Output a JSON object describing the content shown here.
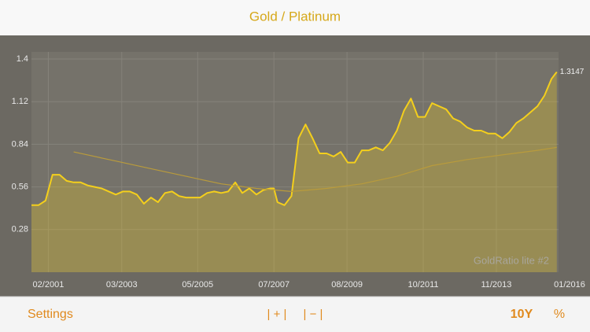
{
  "header": {
    "title": "Gold / Platinum"
  },
  "chart_data": {
    "type": "line",
    "watermark": "GoldRatio lite #2",
    "xlim": [
      2000.6,
      2015.6
    ],
    "xticks": [
      {
        "value": 2001.08,
        "label": "02/2001"
      },
      {
        "value": 2003.17,
        "label": "03/2003"
      },
      {
        "value": 2005.33,
        "label": "05/2005"
      },
      {
        "value": 2007.5,
        "label": "07/2007"
      },
      {
        "value": 2009.58,
        "label": "08/2009"
      },
      {
        "value": 2011.75,
        "label": "10/2011"
      },
      {
        "value": 2013.83,
        "label": "11/2013"
      },
      {
        "value": 2016.0,
        "label": "01/2016"
      }
    ],
    "ylim": [
      0,
      1.4
    ],
    "yticks": [
      0.28,
      0.56,
      0.84,
      1.12,
      1.4
    ],
    "grid": true,
    "series": [
      {
        "color": "#f4cf1c",
        "x": [
          2000.6,
          2000.8,
          2001.0,
          2001.2,
          2001.4,
          2001.6,
          2001.8,
          2002.0,
          2002.2,
          2002.4,
          2002.6,
          2002.8,
          2003.0,
          2003.2,
          2003.4,
          2003.6,
          2003.8,
          2004.0,
          2004.2,
          2004.4,
          2004.6,
          2004.8,
          2005.0,
          2005.2,
          2005.4,
          2005.6,
          2005.8,
          2006.0,
          2006.2,
          2006.4,
          2006.6,
          2006.8,
          2007.0,
          2007.2,
          2007.4,
          2007.5,
          2007.6,
          2007.8,
          2008.0,
          2008.2,
          2008.4,
          2008.6,
          2008.8,
          2009.0,
          2009.2,
          2009.4,
          2009.6,
          2009.8,
          2010.0,
          2010.2,
          2010.4,
          2010.6,
          2010.8,
          2011.0,
          2011.2,
          2011.4,
          2011.6,
          2011.8,
          2012.0,
          2012.2,
          2012.4,
          2012.6,
          2012.8,
          2013.0,
          2013.2,
          2013.4,
          2013.6,
          2013.8,
          2014.0,
          2014.2,
          2014.4,
          2014.6,
          2014.8,
          2015.0,
          2015.2,
          2015.4,
          2015.5,
          2015.55
        ],
        "values": [
          0.44,
          0.44,
          0.47,
          0.64,
          0.64,
          0.6,
          0.59,
          0.59,
          0.57,
          0.56,
          0.55,
          0.53,
          0.51,
          0.53,
          0.53,
          0.51,
          0.45,
          0.49,
          0.46,
          0.52,
          0.53,
          0.5,
          0.49,
          0.49,
          0.49,
          0.52,
          0.53,
          0.52,
          0.53,
          0.59,
          0.52,
          0.55,
          0.51,
          0.54,
          0.55,
          0.55,
          0.46,
          0.44,
          0.5,
          0.88,
          0.97,
          0.88,
          0.78,
          0.78,
          0.76,
          0.79,
          0.72,
          0.72,
          0.8,
          0.8,
          0.82,
          0.8,
          0.85,
          0.93,
          1.06,
          1.14,
          1.02,
          1.02,
          1.11,
          1.09,
          1.07,
          1.01,
          0.99,
          0.95,
          0.93,
          0.93,
          0.91,
          0.91,
          0.88,
          0.92,
          0.98,
          1.01,
          1.05,
          1.09,
          1.16,
          1.27,
          1.3,
          1.3147
        ]
      },
      {
        "color": "#b99b3c",
        "x": [
          2001.8,
          2003.0,
          2004.0,
          2005.0,
          2006.0,
          2007.0,
          2008.0,
          2009.0,
          2010.0,
          2011.0,
          2012.0,
          2013.0,
          2014.0,
          2015.0,
          2015.55
        ],
        "values": [
          0.79,
          0.73,
          0.68,
          0.63,
          0.58,
          0.55,
          0.53,
          0.55,
          0.58,
          0.63,
          0.7,
          0.74,
          0.77,
          0.8,
          0.82
        ]
      }
    ]
  },
  "toolbar": {
    "settings": "Settings",
    "zoom_in": "| + |",
    "zoom_out": "| − |",
    "range": "10Y",
    "percent": "%"
  }
}
